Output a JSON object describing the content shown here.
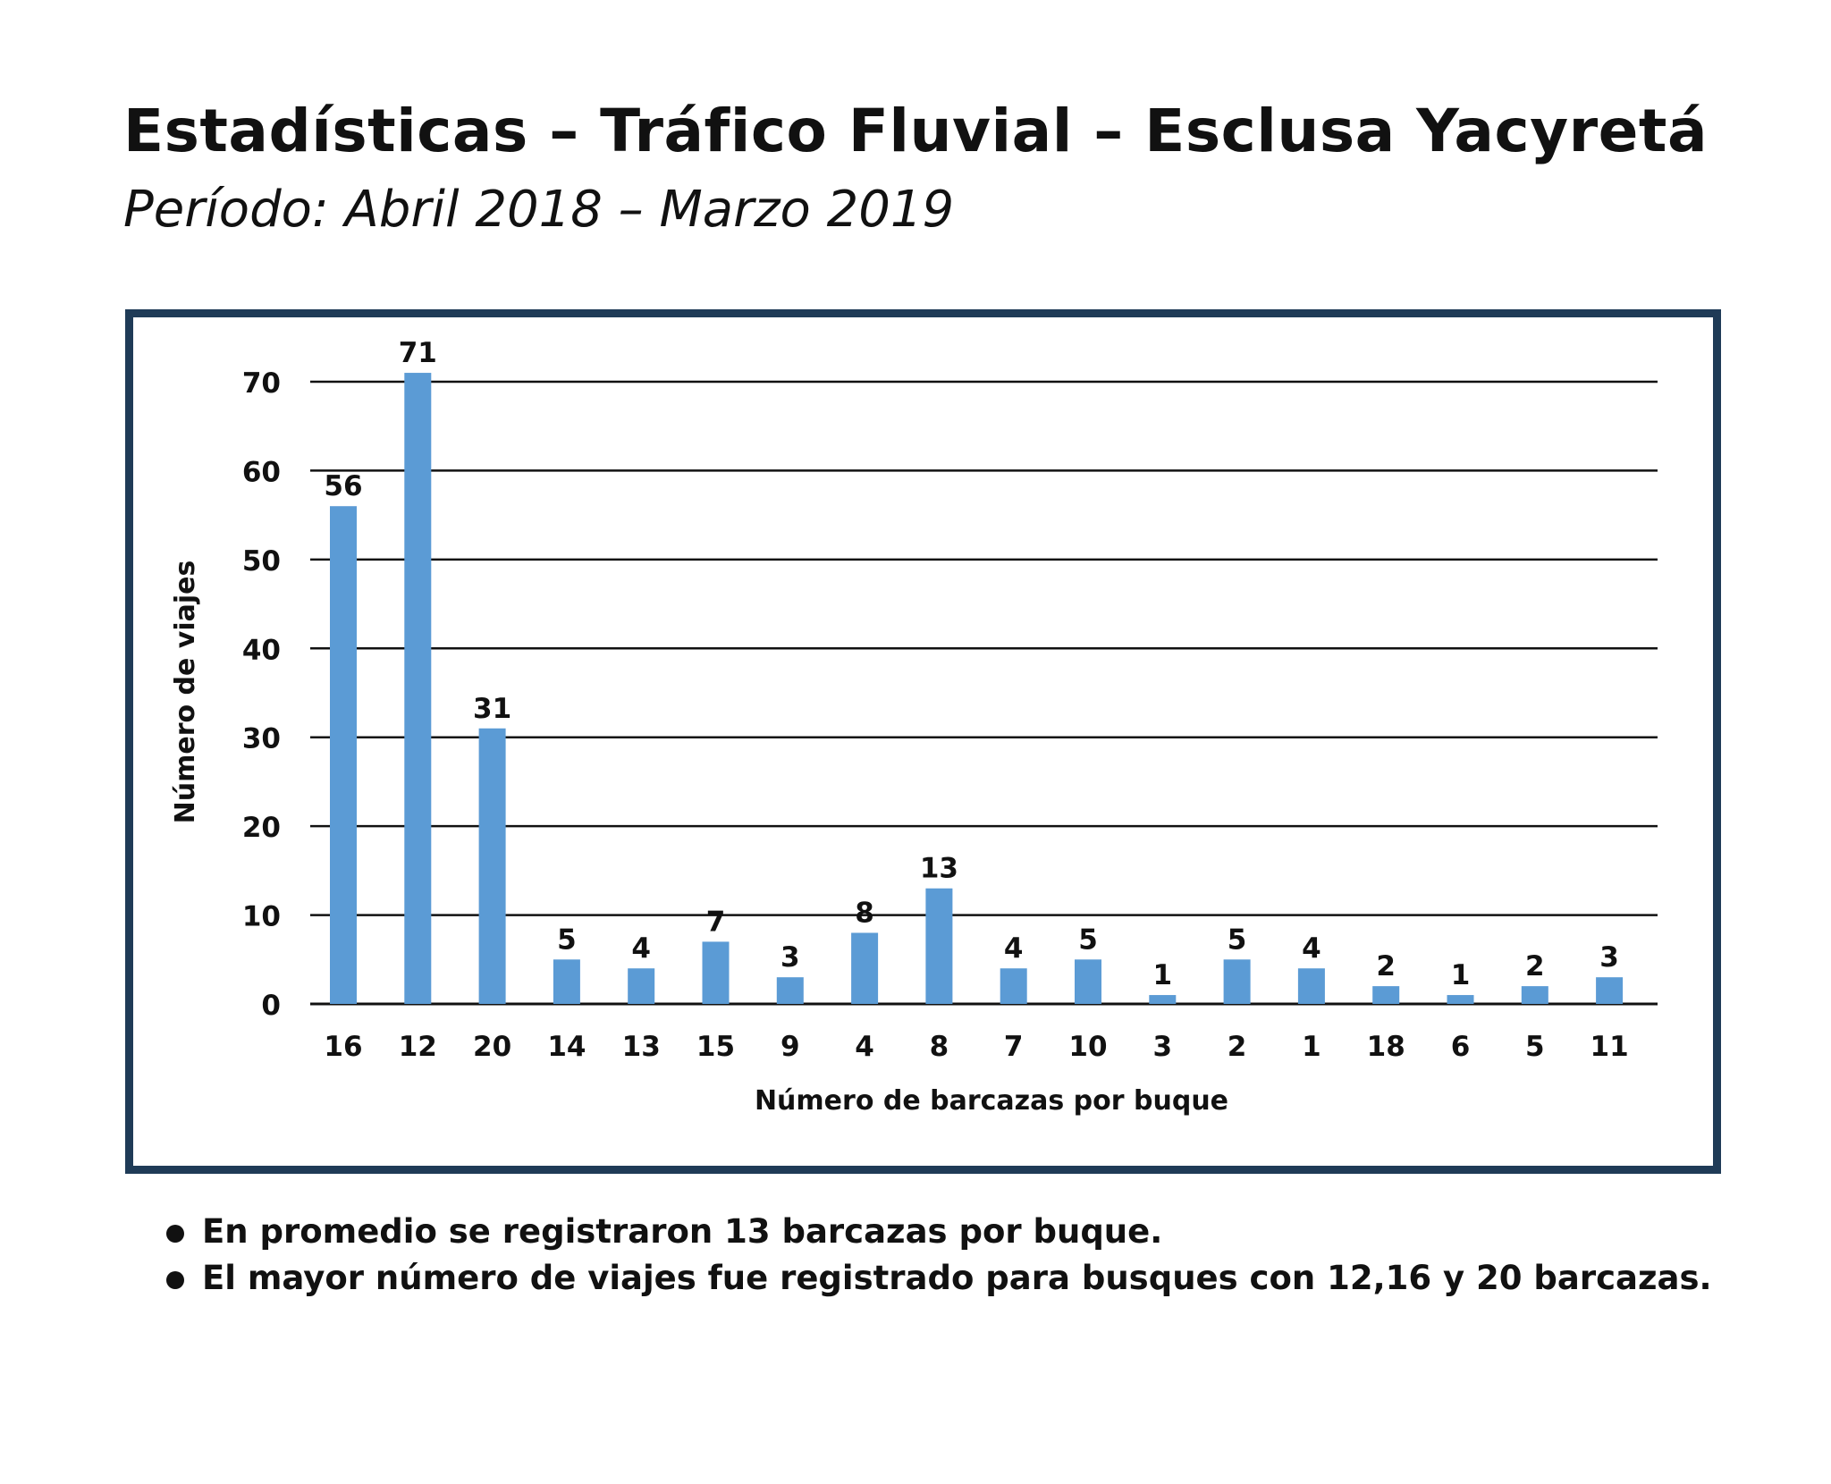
{
  "header": {
    "title": "Estadísticas – Tráfico Fluvial – Esclusa Yacyretá",
    "subtitle": "Período: Abril 2018  – Marzo 2019"
  },
  "chart_data": {
    "type": "bar",
    "categories": [
      "16",
      "12",
      "20",
      "14",
      "13",
      "15",
      "9",
      "4",
      "8",
      "7",
      "10",
      "3",
      "2",
      "1",
      "18",
      "6",
      "5",
      "11"
    ],
    "values": [
      56,
      71,
      31,
      5,
      4,
      7,
      3,
      8,
      13,
      4,
      5,
      1,
      5,
      4,
      2,
      1,
      2,
      3
    ],
    "xlabel": "Número de barcazas por buque",
    "ylabel": "Número de viajes",
    "ylim": [
      0,
      70
    ],
    "yticks": [
      0,
      10,
      20,
      30,
      40,
      50,
      60,
      70
    ],
    "grid": true,
    "bar_color": "#5b9bd5",
    "frame_color": "#1f3b57"
  },
  "notes": [
    "En promedio se registraron 13 barcazas por buque.",
    "El mayor número de viajes fue registrado para busques con 12,16 y 20 barcazas."
  ]
}
